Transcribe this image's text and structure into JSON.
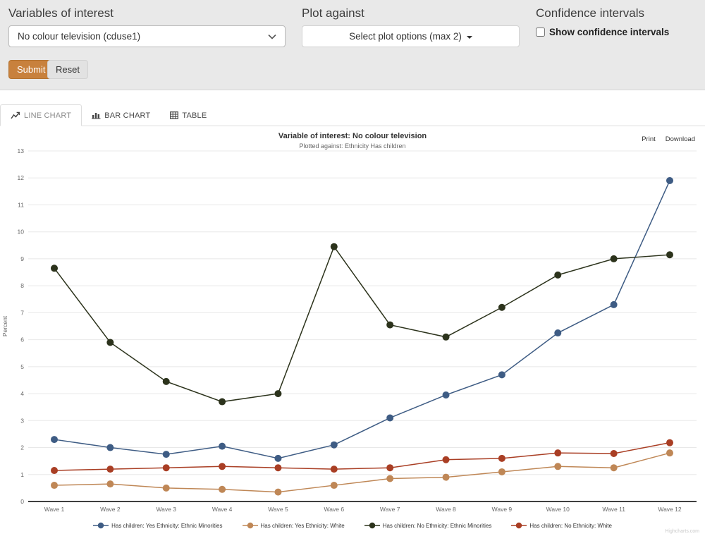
{
  "controls": {
    "variables_label": "Variables of interest",
    "variables_value": "No colour television (cduse1)",
    "plot_against_label": "Plot against",
    "plot_options_button": "Select plot options (max 2)",
    "confidence_label": "Confidence intervals",
    "confidence_checkbox_label": "Show confidence intervals",
    "submit_label": "Submit",
    "reset_label": "Reset"
  },
  "tabs": [
    {
      "label": "LINE CHART",
      "active": true
    },
    {
      "label": "BAR CHART",
      "active": false
    },
    {
      "label": "TABLE",
      "active": false
    }
  ],
  "chart_header": {
    "print_label": "Print",
    "download_label": "Download",
    "credits": "Highcharts.com"
  },
  "chart_data": {
    "type": "line",
    "title": "Variable of interest: No colour television",
    "subtitle": "Plotted against: Ethnicity Has children",
    "xlabel": "",
    "ylabel": "Percent",
    "ylim": [
      0,
      13
    ],
    "y_tick_step": 1,
    "grid": true,
    "legend_position": "bottom",
    "categories": [
      "Wave 1",
      "Wave 2",
      "Wave 3",
      "Wave 4",
      "Wave 5",
      "Wave 6",
      "Wave 7",
      "Wave 8",
      "Wave 9",
      "Wave 10",
      "Wave 11",
      "Wave 12"
    ],
    "series": [
      {
        "name": "Has children: Yes Ethnicity: Ethnic Minorities",
        "color": "#3e5c84",
        "values": [
          2.3,
          2.0,
          1.75,
          2.05,
          1.6,
          2.1,
          3.1,
          3.95,
          4.7,
          6.25,
          7.3,
          11.9
        ]
      },
      {
        "name": "Has children: Yes Ethnicity: White",
        "color": "#bf8756",
        "values": [
          0.6,
          0.65,
          0.5,
          0.45,
          0.35,
          0.6,
          0.85,
          0.9,
          1.1,
          1.3,
          1.25,
          1.8
        ]
      },
      {
        "name": "Has children: No Ethnicity: Ethnic Minorities",
        "color": "#2c331c",
        "values": [
          8.65,
          5.9,
          4.45,
          3.7,
          4.0,
          9.45,
          6.55,
          6.1,
          7.2,
          8.4,
          9.0,
          9.15
        ]
      },
      {
        "name": "Has children: No Ethnicity: White",
        "color": "#a93e24",
        "values": [
          1.15,
          1.2,
          1.25,
          1.3,
          1.25,
          1.2,
          1.25,
          1.55,
          1.6,
          1.8,
          1.78,
          2.18
        ]
      }
    ]
  },
  "colors": {
    "accent": "#c8813d",
    "topbar_bg": "#e9e9e9",
    "axis_line": "#3f3f3f",
    "gridline": "#e8e8e8"
  }
}
